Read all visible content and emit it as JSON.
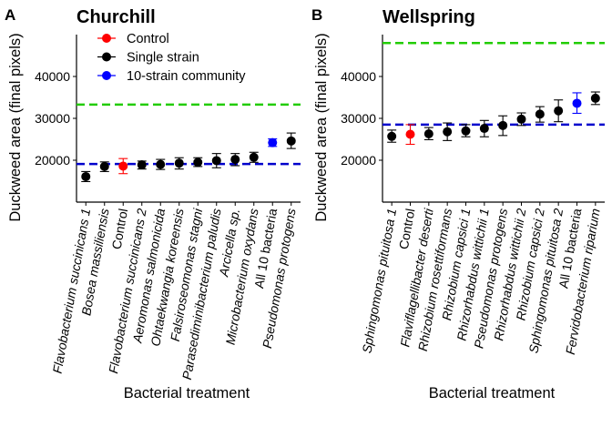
{
  "chart_data": [
    {
      "type": "scatter",
      "panel_tag": "A",
      "title": "Churchill",
      "xlabel": "Bacterial treatment",
      "ylabel": "Duckweed area (final pixels)",
      "ylim": [
        10000,
        50000
      ],
      "yticks": [
        20000,
        30000,
        40000
      ],
      "grid": false,
      "legend": {
        "placement": "top",
        "entries": [
          {
            "label": "Control",
            "color": "#FF0000"
          },
          {
            "label": "Single strain",
            "color": "#000000"
          },
          {
            "label": "10-strain community",
            "color": "#0000FF"
          }
        ]
      },
      "reference_lines": [
        {
          "value": 33300,
          "color": "#22CC00",
          "style": "dashed"
        },
        {
          "value": 19100,
          "color": "#0000CC",
          "style": "dashed"
        }
      ],
      "categories": [
        "Flavobacterium succinicans 1",
        "Bosea massiliensis",
        "Control",
        "Flavobacterium succinicans 2",
        "Aeromonas salmonicida",
        "Ohtaekwangia koreensis",
        "Falsiroseomonas stagni",
        "Parasediminibacterium paludis",
        "Arcicella sp.",
        "Microbacterium oxydans",
        "All 10 bacteria",
        "Pseudomonas protogens"
      ],
      "italic": [
        true,
        true,
        false,
        true,
        true,
        true,
        true,
        true,
        true,
        true,
        false,
        true
      ],
      "group": [
        "single",
        "single",
        "control",
        "single",
        "single",
        "single",
        "single",
        "single",
        "single",
        "single",
        "community",
        "single"
      ],
      "values": [
        16100,
        18500,
        18600,
        18900,
        19000,
        19300,
        19500,
        19900,
        20200,
        20700,
        24200,
        24600
      ],
      "err_low": [
        14900,
        17300,
        16800,
        17900,
        17800,
        17900,
        18500,
        18200,
        18700,
        19500,
        23300,
        22800
      ],
      "err_high": [
        17300,
        19600,
        20400,
        19800,
        20200,
        20600,
        20600,
        21600,
        21600,
        21900,
        25100,
        26500
      ]
    },
    {
      "type": "scatter",
      "panel_tag": "B",
      "title": "Wellspring",
      "xlabel": "Bacterial treatment",
      "ylabel": "Duckweed area (final pixels)",
      "ylim": [
        10000,
        50000
      ],
      "yticks": [
        20000,
        30000,
        40000
      ],
      "grid": false,
      "reference_lines": [
        {
          "value": 48000,
          "color": "#22CC00",
          "style": "dashed"
        },
        {
          "value": 28500,
          "color": "#0000CC",
          "style": "dashed"
        }
      ],
      "categories": [
        "Sphingomonas pituitosa 1",
        "Control",
        "Flaviflagellibacter deserti",
        "Rhizobium rosettiformans",
        "Rhizobium capsici 1",
        "Rhizorhabdus wittichii 1",
        "Pseudomonas protogens",
        "Rhizorhabdus wittichii 2",
        "Rhizobium capsici 2",
        "Sphingomonas pituitosa 2",
        "All 10 bacteria",
        "Fervidobacterium riparium"
      ],
      "italic": [
        true,
        false,
        true,
        true,
        true,
        true,
        true,
        true,
        true,
        true,
        false,
        true
      ],
      "group": [
        "single",
        "control",
        "single",
        "single",
        "single",
        "single",
        "single",
        "single",
        "single",
        "single",
        "community",
        "single"
      ],
      "values": [
        25700,
        26200,
        26300,
        26800,
        27000,
        27600,
        28300,
        29800,
        31000,
        31800,
        33600,
        34800
      ],
      "err_low": [
        24300,
        23800,
        24900,
        24700,
        25600,
        25600,
        25900,
        28300,
        29100,
        29200,
        31200,
        33300
      ],
      "err_high": [
        27200,
        28500,
        27800,
        28900,
        28500,
        29500,
        30600,
        31300,
        32800,
        34400,
        36100,
        36300
      ]
    }
  ]
}
